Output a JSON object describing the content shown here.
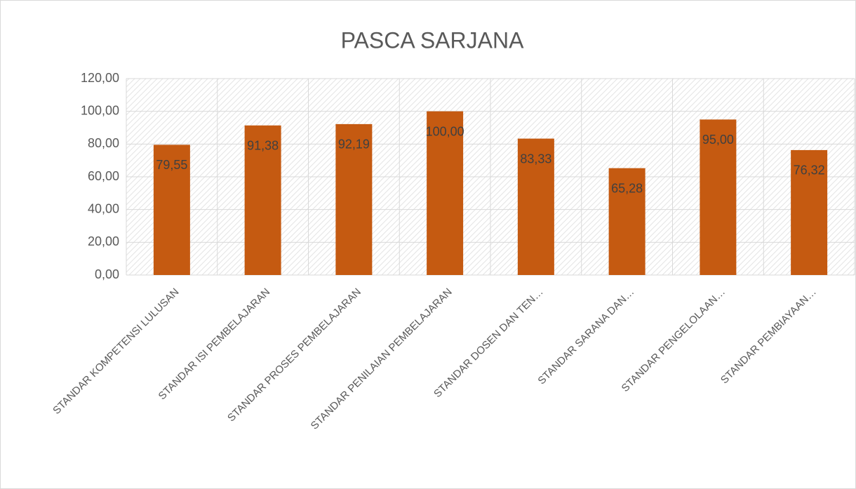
{
  "chart_data": {
    "type": "bar",
    "title": "PASCA SARJANA",
    "categories": [
      "STANDAR KOMPETENSI LULUSAN",
      "STANDAR ISI PEMBELAJARAN",
      "STANDAR PROSES PEMBELAJARAN",
      "STANDAR PENILAIAN PEMBELAJARAN",
      "STANDAR DOSEN DAN TEN…",
      "STANDAR SARANA DAN…",
      "STANDAR PENGELOLAAN…",
      "STANDAR PEMBIAYAAN…"
    ],
    "values": [
      79.55,
      91.38,
      92.19,
      100,
      83.33,
      65.28,
      95,
      76.32
    ],
    "value_labels": [
      "79,55",
      "91,38",
      "92,19",
      "100,00",
      "83,33",
      "65,28",
      "95,00",
      "76,32"
    ],
    "color": "#c55a11",
    "ylim": [
      0,
      120
    ],
    "yticks": [
      {
        "value": 0,
        "label": "0,00"
      },
      {
        "value": 20,
        "label": "20,00"
      },
      {
        "value": 40,
        "label": "40,00"
      },
      {
        "value": 60,
        "label": "60,00"
      },
      {
        "value": 80,
        "label": "80,00"
      },
      {
        "value": 100,
        "label": "100,00"
      },
      {
        "value": 120,
        "label": "120,00"
      }
    ],
    "grid": true
  }
}
